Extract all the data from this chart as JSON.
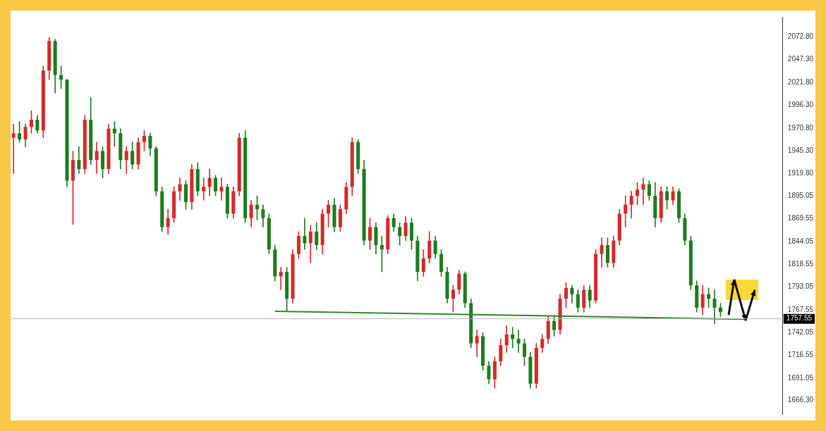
{
  "chart_data": {
    "type": "candlestick",
    "categories": [
      null,
      null,
      null,
      null,
      null,
      null,
      null,
      null,
      null,
      null,
      null,
      null,
      null,
      null,
      null,
      null,
      null,
      null,
      null,
      null,
      null,
      null,
      null,
      null,
      null,
      null,
      null,
      null,
      null,
      null,
      null,
      null,
      null,
      null,
      null,
      null,
      null,
      null,
      null,
      null,
      null,
      null,
      null,
      null,
      null,
      null,
      null,
      null,
      null,
      null,
      null,
      null,
      null,
      null,
      null,
      null,
      null,
      null,
      null,
      null,
      null,
      null,
      null,
      null,
      null,
      null,
      null,
      null,
      null,
      null,
      null,
      null,
      null,
      null,
      null,
      null,
      null,
      null,
      null,
      null,
      null,
      null,
      null,
      null,
      null,
      null,
      null,
      null,
      null,
      null,
      null,
      null,
      null,
      null,
      null,
      null,
      null,
      null,
      null,
      null,
      null,
      null,
      null,
      null,
      null,
      null,
      null,
      null,
      null,
      null,
      null,
      null,
      null,
      null,
      null,
      null,
      null,
      null,
      null,
      null,
      null,
      null,
      null,
      null,
      null,
      null,
      null,
      null,
      null,
      null
    ],
    "ohlc": [
      [
        1960,
        1975,
        1920,
        1965
      ],
      [
        1965,
        1978,
        1955,
        1958
      ],
      [
        1958,
        1975,
        1950,
        1972
      ],
      [
        1972,
        1990,
        1965,
        1980
      ],
      [
        1980,
        1985,
        1965,
        1968
      ],
      [
        1968,
        2040,
        1960,
        2035
      ],
      [
        2035,
        2072,
        2025,
        2068
      ],
      [
        2068,
        2070,
        2010,
        2030
      ],
      [
        2030,
        2040,
        2015,
        2025
      ],
      [
        2025,
        2025,
        1905,
        1912
      ],
      [
        1912,
        1945,
        1863,
        1935
      ],
      [
        1935,
        1950,
        1920,
        1925
      ],
      [
        1925,
        1985,
        1920,
        1980
      ],
      [
        1980,
        2005,
        1930,
        1935
      ],
      [
        1935,
        1955,
        1920,
        1945
      ],
      [
        1945,
        1950,
        1915,
        1925
      ],
      [
        1925,
        1975,
        1920,
        1970
      ],
      [
        1970,
        1978,
        1950,
        1965
      ],
      [
        1965,
        1970,
        1925,
        1935
      ],
      [
        1935,
        1950,
        1920,
        1945
      ],
      [
        1945,
        1955,
        1925,
        1930
      ],
      [
        1930,
        1960,
        1925,
        1955
      ],
      [
        1955,
        1968,
        1945,
        1962
      ],
      [
        1962,
        1965,
        1940,
        1948
      ],
      [
        1948,
        1950,
        1895,
        1900
      ],
      [
        1900,
        1905,
        1855,
        1860
      ],
      [
        1860,
        1880,
        1852,
        1870
      ],
      [
        1870,
        1905,
        1865,
        1900
      ],
      [
        1900,
        1915,
        1890,
        1908
      ],
      [
        1908,
        1912,
        1880,
        1888
      ],
      [
        1888,
        1930,
        1880,
        1925
      ],
      [
        1925,
        1932,
        1895,
        1900
      ],
      [
        1900,
        1915,
        1890,
        1905
      ],
      [
        1905,
        1925,
        1895,
        1915
      ],
      [
        1915,
        1918,
        1895,
        1900
      ],
      [
        1900,
        1915,
        1890,
        1905
      ],
      [
        1905,
        1908,
        1870,
        1875
      ],
      [
        1875,
        1905,
        1870,
        1900
      ],
      [
        1900,
        1965,
        1895,
        1960
      ],
      [
        1960,
        1968,
        1865,
        1870
      ],
      [
        1870,
        1890,
        1860,
        1885
      ],
      [
        1885,
        1895,
        1868,
        1880
      ],
      [
        1880,
        1885,
        1860,
        1870
      ],
      [
        1870,
        1875,
        1830,
        1835
      ],
      [
        1835,
        1840,
        1800,
        1805
      ],
      [
        1805,
        1815,
        1790,
        1810
      ],
      [
        1810,
        1815,
        1766,
        1780
      ],
      [
        1780,
        1835,
        1775,
        1830
      ],
      [
        1830,
        1855,
        1825,
        1850
      ],
      [
        1850,
        1870,
        1835,
        1842
      ],
      [
        1842,
        1862,
        1820,
        1855
      ],
      [
        1855,
        1865,
        1835,
        1840
      ],
      [
        1840,
        1880,
        1830,
        1875
      ],
      [
        1875,
        1890,
        1860,
        1885
      ],
      [
        1885,
        1892,
        1855,
        1860
      ],
      [
        1860,
        1885,
        1855,
        1880
      ],
      [
        1880,
        1910,
        1875,
        1905
      ],
      [
        1905,
        1960,
        1895,
        1955
      ],
      [
        1955,
        1958,
        1920,
        1925
      ],
      [
        1925,
        1935,
        1840,
        1845
      ],
      [
        1845,
        1870,
        1835,
        1860
      ],
      [
        1860,
        1865,
        1830,
        1840
      ],
      [
        1840,
        1850,
        1810,
        1835
      ],
      [
        1835,
        1873,
        1830,
        1870
      ],
      [
        1870,
        1875,
        1855,
        1860
      ],
      [
        1860,
        1865,
        1840,
        1850
      ],
      [
        1850,
        1872,
        1845,
        1865
      ],
      [
        1865,
        1870,
        1835,
        1845
      ],
      [
        1845,
        1850,
        1800,
        1810
      ],
      [
        1810,
        1835,
        1805,
        1825
      ],
      [
        1825,
        1855,
        1820,
        1845
      ],
      [
        1845,
        1850,
        1825,
        1830
      ],
      [
        1830,
        1835,
        1805,
        1810
      ],
      [
        1810,
        1815,
        1775,
        1780
      ],
      [
        1780,
        1795,
        1765,
        1790
      ],
      [
        1790,
        1812,
        1785,
        1808
      ],
      [
        1808,
        1810,
        1770,
        1775
      ],
      [
        1775,
        1780,
        1725,
        1730
      ],
      [
        1730,
        1745,
        1715,
        1738
      ],
      [
        1738,
        1742,
        1700,
        1705
      ],
      [
        1705,
        1710,
        1685,
        1690
      ],
      [
        1690,
        1715,
        1680,
        1710
      ],
      [
        1710,
        1735,
        1705,
        1728
      ],
      [
        1728,
        1750,
        1720,
        1740
      ],
      [
        1740,
        1748,
        1725,
        1735
      ],
      [
        1735,
        1745,
        1720,
        1730
      ],
      [
        1730,
        1735,
        1705,
        1715
      ],
      [
        1715,
        1720,
        1680,
        1685
      ],
      [
        1685,
        1730,
        1680,
        1725
      ],
      [
        1725,
        1740,
        1720,
        1735
      ],
      [
        1735,
        1760,
        1730,
        1755
      ],
      [
        1755,
        1760,
        1738,
        1745
      ],
      [
        1745,
        1785,
        1740,
        1780
      ],
      [
        1780,
        1798,
        1770,
        1792
      ],
      [
        1792,
        1795,
        1775,
        1785
      ],
      [
        1785,
        1790,
        1765,
        1770
      ],
      [
        1770,
        1795,
        1765,
        1790
      ],
      [
        1790,
        1795,
        1770,
        1778
      ],
      [
        1778,
        1835,
        1775,
        1830
      ],
      [
        1830,
        1848,
        1815,
        1840
      ],
      [
        1840,
        1848,
        1815,
        1820
      ],
      [
        1820,
        1850,
        1815,
        1845
      ],
      [
        1845,
        1880,
        1840,
        1875
      ],
      [
        1875,
        1895,
        1860,
        1885
      ],
      [
        1885,
        1900,
        1870,
        1895
      ],
      [
        1895,
        1910,
        1885,
        1902
      ],
      [
        1902,
        1915,
        1885,
        1908
      ],
      [
        1908,
        1912,
        1890,
        1895
      ],
      [
        1895,
        1910,
        1860,
        1870
      ],
      [
        1870,
        1905,
        1865,
        1900
      ],
      [
        1900,
        1905,
        1880,
        1890
      ],
      [
        1890,
        1905,
        1885,
        1900
      ],
      [
        1900,
        1903,
        1865,
        1870
      ],
      [
        1870,
        1875,
        1840,
        1845
      ],
      [
        1845,
        1850,
        1790,
        1795
      ],
      [
        1795,
        1800,
        1765,
        1770
      ],
      [
        1770,
        1795,
        1762,
        1785
      ],
      [
        1785,
        1792,
        1770,
        1780
      ],
      [
        1780,
        1790,
        1752,
        1770
      ],
      [
        1770,
        1775,
        1760,
        1765
      ],
      null,
      null,
      null,
      null,
      null,
      null,
      null,
      null,
      null,
      null
    ],
    "colors": [
      "#d42a2a",
      "#1e7b1e",
      "#d42a2a",
      "#d42a2a",
      "#1e7b1e",
      "#d42a2a",
      "#d42a2a",
      "#1e7b1e",
      "#1e7b1e",
      "#1e7b1e",
      "#d42a2a",
      "#1e7b1e",
      "#d42a2a",
      "#1e7b1e",
      "#d42a2a",
      "#1e7b1e",
      "#d42a2a",
      "#1e7b1e",
      "#1e7b1e",
      "#d42a2a",
      "#1e7b1e",
      "#d42a2a",
      "#d42a2a",
      "#1e7b1e",
      "#1e7b1e",
      "#1e7b1e",
      "#d42a2a",
      "#d42a2a",
      "#d42a2a",
      "#1e7b1e",
      "#d42a2a",
      "#1e7b1e",
      "#d42a2a",
      "#d42a2a",
      "#1e7b1e",
      "#d42a2a",
      "#1e7b1e",
      "#d42a2a",
      "#d42a2a",
      "#1e7b1e",
      "#d42a2a",
      "#1e7b1e",
      "#1e7b1e",
      "#1e7b1e",
      "#1e7b1e",
      "#d42a2a",
      "#1e7b1e",
      "#d42a2a",
      "#d42a2a",
      "#1e7b1e",
      "#d42a2a",
      "#1e7b1e",
      "#d42a2a",
      "#d42a2a",
      "#1e7b1e",
      "#d42a2a",
      "#d42a2a",
      "#d42a2a",
      "#1e7b1e",
      "#1e7b1e",
      "#d42a2a",
      "#1e7b1e",
      "#1e7b1e",
      "#d42a2a",
      "#1e7b1e",
      "#1e7b1e",
      "#d42a2a",
      "#1e7b1e",
      "#1e7b1e",
      "#d42a2a",
      "#d42a2a",
      "#1e7b1e",
      "#1e7b1e",
      "#1e7b1e",
      "#d42a2a",
      "#d42a2a",
      "#1e7b1e",
      "#1e7b1e",
      "#d42a2a",
      "#1e7b1e",
      "#1e7b1e",
      "#d42a2a",
      "#d42a2a",
      "#d42a2a",
      "#1e7b1e",
      "#1e7b1e",
      "#1e7b1e",
      "#1e7b1e",
      "#d42a2a",
      "#d42a2a",
      "#d42a2a",
      "#1e7b1e",
      "#d42a2a",
      "#d42a2a",
      "#1e7b1e",
      "#1e7b1e",
      "#d42a2a",
      "#1e7b1e",
      "#d42a2a",
      "#d42a2a",
      "#1e7b1e",
      "#d42a2a",
      "#d42a2a",
      "#d42a2a",
      "#d42a2a",
      "#d42a2a",
      "#d42a2a",
      "#1e7b1e",
      "#1e7b1e",
      "#d42a2a",
      "#1e7b1e",
      "#d42a2a",
      "#1e7b1e",
      "#1e7b1e",
      "#1e7b1e",
      "#1e7b1e",
      "#d42a2a",
      "#1e7b1e",
      "#1e7b1e",
      "#1e7b1e",
      null,
      null,
      null,
      null,
      null,
      null,
      null,
      null,
      null,
      null
    ],
    "series": [
      {
        "type": "line",
        "color": "#2a8a2a",
        "values": [
          null,
          null,
          null,
          null,
          null,
          null,
          null,
          null,
          null,
          null,
          null,
          null,
          null,
          null,
          null,
          null,
          null,
          null,
          null,
          null,
          null,
          null,
          null,
          null,
          null,
          null,
          null,
          null,
          null,
          null,
          null,
          null,
          null,
          null,
          null,
          null,
          null,
          null,
          null,
          null,
          null,
          null,
          null,
          null,
          1766,
          null,
          null,
          null,
          null,
          null,
          null,
          null,
          null,
          null,
          null,
          null,
          null,
          null,
          null,
          null,
          null,
          null,
          null,
          null,
          null,
          null,
          null,
          null,
          null,
          null,
          null,
          null,
          null,
          null,
          null,
          null,
          null,
          null,
          null,
          null,
          null,
          null,
          null,
          null,
          null,
          null,
          null,
          null,
          null,
          null,
          null,
          null,
          null,
          null,
          null,
          null,
          null,
          null,
          null,
          null,
          null,
          null,
          null,
          null,
          null,
          null,
          null,
          null,
          null,
          null,
          null,
          null,
          null,
          null,
          null,
          null,
          null,
          null,
          null,
          null,
          null,
          null,
          null,
          1757,
          null,
          null,
          null,
          null,
          null,
          null
        ]
      }
    ],
    "ref_lines": [
      {
        "axis": "y",
        "value": 1757.55,
        "label": "1757.55",
        "color": "#b8b8b8"
      }
    ],
    "ylim": [
      1651,
      2095
    ],
    "yticks": [
      {
        "value": 2072.8,
        "label": "2072.80"
      },
      {
        "value": 2047.3,
        "label": "2047.30"
      },
      {
        "value": 2021.8,
        "label": "2021.80"
      },
      {
        "value": 1996.3,
        "label": "1996.30"
      },
      {
        "value": 1970.8,
        "label": "1970.80"
      },
      {
        "value": 1945.3,
        "label": "1945.30"
      },
      {
        "value": 1919.8,
        "label": "1919.80"
      },
      {
        "value": 1895.05,
        "label": "1895.05"
      },
      {
        "value": 1869.55,
        "label": "1869.55"
      },
      {
        "value": 1844.05,
        "label": "1844.05"
      },
      {
        "value": 1818.55,
        "label": "1818.55"
      },
      {
        "value": 1793.05,
        "label": "1793.05"
      },
      {
        "value": 1767.55,
        "label": "1767.55"
      },
      {
        "value": 1742.05,
        "label": "1742.05"
      },
      {
        "value": 1716.55,
        "label": "1716.55"
      },
      {
        "value": 1691.05,
        "label": "1691.05"
      },
      {
        "value": 1666.3,
        "label": "1666.30"
      }
    ],
    "tick_labels": "y"
  }
}
